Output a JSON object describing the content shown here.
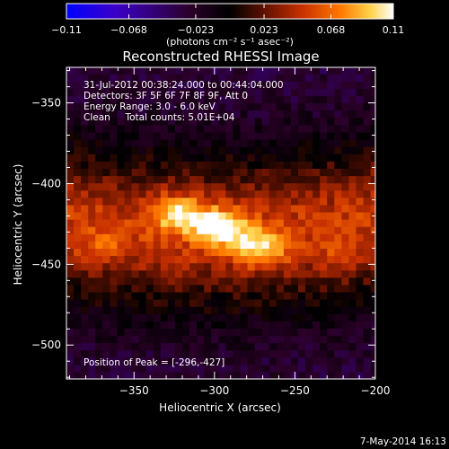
{
  "chart_data": {
    "type": "heatmap",
    "title": "Reconstructed RHESSI Image",
    "xlabel": "Heliocentric X (arcsec)",
    "ylabel": "Heliocentric Y (arcsec)",
    "xlim": [
      -392,
      -200
    ],
    "ylim": [
      -521,
      -328
    ],
    "x_ticks": [
      -350,
      -300,
      -250,
      -200
    ],
    "x_tick_labels": [
      "−350",
      "−300",
      "−250",
      "−200"
    ],
    "y_ticks": [
      -350,
      -400,
      -450,
      -500
    ],
    "y_tick_labels": [
      "−350",
      "−400",
      "−450",
      "−500"
    ],
    "colorbar": {
      "range": [
        -0.11,
        0.11
      ],
      "ticks": [
        -0.11,
        -0.068,
        -0.023,
        0.023,
        0.068,
        0.11
      ],
      "tick_labels": [
        "−0.11",
        "−0.068",
        "−0.023",
        "0.023",
        "0.068",
        "0.11"
      ],
      "unit_label": "(photons cm⁻² s⁻¹ asec⁻²)",
      "colormap": [
        "#0000ff",
        "#3c00c8",
        "#2a0028",
        "#000000",
        "#5a1000",
        "#c83000",
        "#ff7a00",
        "#ffd24a",
        "#ffffff"
      ]
    },
    "info_lines": [
      "31-Jul-2012 00:38:24.000 to 00:44:04.000",
      "Detectors: 3F 5F 6F 7F 8F 9F, Att 0",
      "Energy Range: 3.0 - 6.0 keV",
      "Clean     Total counts: 5.01E+04"
    ],
    "peak_label": "Position of Peak = [-296,-427]",
    "peak": [
      -296,
      -427
    ],
    "sources": [
      {
        "x": -322,
        "y": -418,
        "value": 0.095
      },
      {
        "x": -296,
        "y": -427,
        "value": 0.11
      },
      {
        "x": -272,
        "y": -440,
        "value": 0.09
      },
      {
        "x": -370,
        "y": -438,
        "value": 0.05
      },
      {
        "x": -222,
        "y": -446,
        "value": 0.045
      }
    ],
    "background_value": -0.03,
    "grid": false
  },
  "footer": {
    "date": "7-May-2014 16:13"
  }
}
